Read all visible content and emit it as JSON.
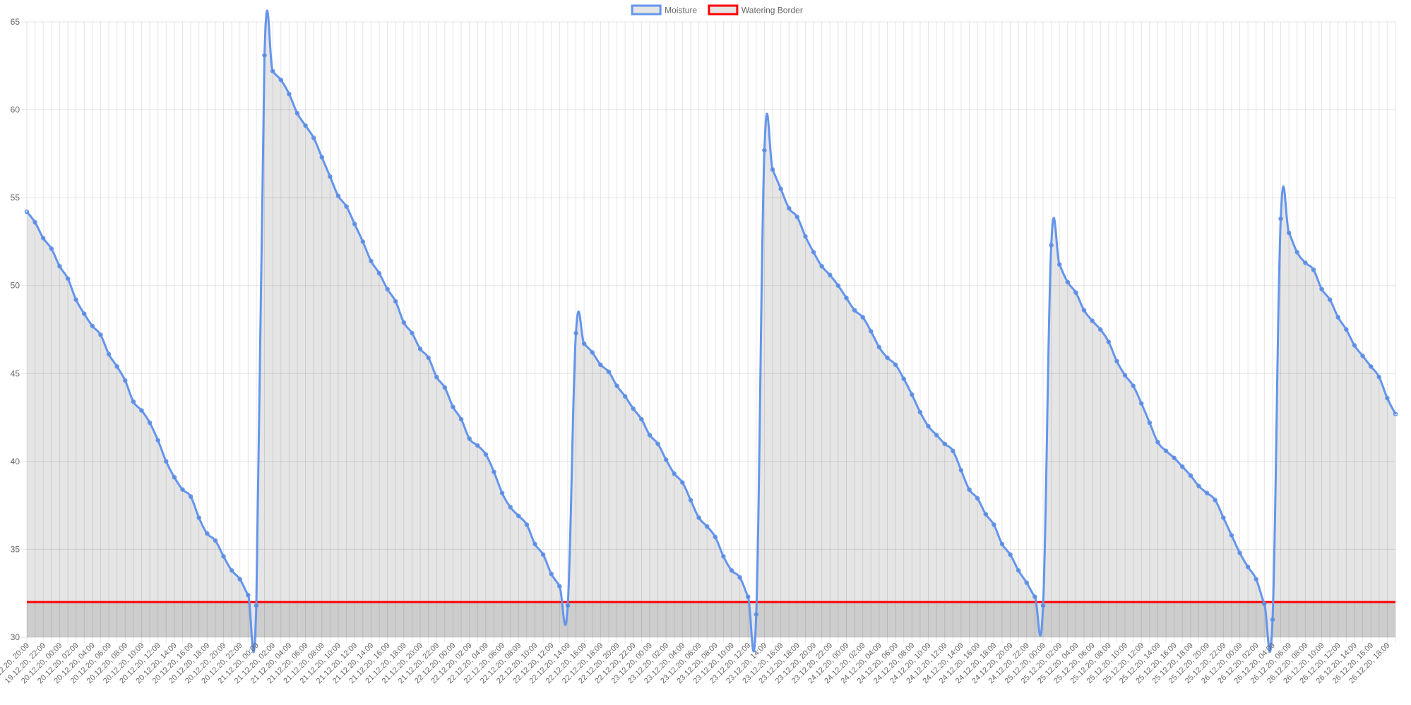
{
  "chart_data": {
    "type": "line",
    "title": "",
    "xlabel": "",
    "ylabel": "",
    "ylim": [
      30,
      65
    ],
    "yticks": [
      30,
      35,
      40,
      45,
      50,
      55,
      60,
      65
    ],
    "grid": true,
    "legend_position": "top-center",
    "x": [
      "19.12.20, 20:09",
      "19.12.20, 21:09",
      "19.12.20, 22:09",
      "19.12.20, 23:09",
      "20.12.20, 00:09",
      "20.12.20, 01:09",
      "20.12.20, 02:09",
      "20.12.20, 03:09",
      "20.12.20, 04:09",
      "20.12.20, 05:09",
      "20.12.20, 06:09",
      "20.12.20, 07:09",
      "20.12.20, 08:09",
      "20.12.20, 09:09",
      "20.12.20, 10:09",
      "20.12.20, 11:09",
      "20.12.20, 12:09",
      "20.12.20, 13:09",
      "20.12.20, 14:09",
      "20.12.20, 15:09",
      "20.12.20, 16:09",
      "20.12.20, 17:09",
      "20.12.20, 18:09",
      "20.12.20, 19:09",
      "20.12.20, 20:09",
      "20.12.20, 21:09",
      "20.12.20, 22:09",
      "20.12.20, 23:09",
      "21.12.20, 00:09",
      "21.12.20, 01:09",
      "21.12.20, 02:09",
      "21.12.20, 03:09",
      "21.12.20, 04:09",
      "21.12.20, 05:09",
      "21.12.20, 06:09",
      "21.12.20, 07:09",
      "21.12.20, 08:09",
      "21.12.20, 09:09",
      "21.12.20, 10:09",
      "21.12.20, 11:09",
      "21.12.20, 12:09",
      "21.12.20, 13:09",
      "21.12.20, 14:09",
      "21.12.20, 15:09",
      "21.12.20, 16:09",
      "21.12.20, 17:09",
      "21.12.20, 18:09",
      "21.12.20, 19:09",
      "21.12.20, 20:09",
      "21.12.20, 21:09",
      "21.12.20, 22:09",
      "21.12.20, 23:09",
      "22.12.20, 00:09",
      "22.12.20, 01:09",
      "22.12.20, 02:09",
      "22.12.20, 03:09",
      "22.12.20, 04:09",
      "22.12.20, 05:09",
      "22.12.20, 06:09",
      "22.12.20, 07:09",
      "22.12.20, 08:09",
      "22.12.20, 09:09",
      "22.12.20, 10:09",
      "22.12.20, 11:09",
      "22.12.20, 12:09",
      "22.12.20, 13:09",
      "22.12.20, 14:09",
      "22.12.20, 15:09",
      "22.12.20, 16:09",
      "22.12.20, 17:09",
      "22.12.20, 18:09",
      "22.12.20, 19:09",
      "22.12.20, 20:09",
      "22.12.20, 21:09",
      "22.12.20, 22:09",
      "22.12.20, 23:09",
      "23.12.20, 00:09",
      "23.12.20, 01:09",
      "23.12.20, 02:09",
      "23.12.20, 03:09",
      "23.12.20, 04:09",
      "23.12.20, 05:09",
      "23.12.20, 06:09",
      "23.12.20, 07:09",
      "23.12.20, 08:09",
      "23.12.20, 09:09",
      "23.12.20, 10:09",
      "23.12.20, 11:09",
      "23.12.20, 12:09",
      "23.12.20, 13:09",
      "23.12.20, 14:09",
      "23.12.20, 15:09",
      "23.12.20, 16:09",
      "23.12.20, 17:09",
      "23.12.20, 18:09",
      "23.12.20, 19:09",
      "23.12.20, 20:09",
      "23.12.20, 21:09",
      "23.12.20, 22:09",
      "23.12.20, 23:09",
      "24.12.20, 00:09",
      "24.12.20, 01:09",
      "24.12.20, 02:09",
      "24.12.20, 03:09",
      "24.12.20, 04:09",
      "24.12.20, 05:09",
      "24.12.20, 06:09",
      "24.12.20, 07:09",
      "24.12.20, 08:09",
      "24.12.20, 09:09",
      "24.12.20, 10:09",
      "24.12.20, 11:09",
      "24.12.20, 12:09",
      "24.12.20, 13:09",
      "24.12.20, 14:09",
      "24.12.20, 15:09",
      "24.12.20, 16:09",
      "24.12.20, 17:09",
      "24.12.20, 18:09",
      "24.12.20, 19:09",
      "24.12.20, 20:09",
      "24.12.20, 21:09",
      "24.12.20, 22:09",
      "24.12.20, 23:09",
      "25.12.20, 00:09",
      "25.12.20, 01:09",
      "25.12.20, 02:09",
      "25.12.20, 03:09",
      "25.12.20, 04:09",
      "25.12.20, 05:09",
      "25.12.20, 06:09",
      "25.12.20, 07:09",
      "25.12.20, 08:09",
      "25.12.20, 09:09",
      "25.12.20, 10:09",
      "25.12.20, 11:09",
      "25.12.20, 12:09",
      "25.12.20, 13:09",
      "25.12.20, 14:09",
      "25.12.20, 15:09",
      "25.12.20, 16:09",
      "25.12.20, 17:09",
      "25.12.20, 18:09",
      "25.12.20, 19:09",
      "25.12.20, 20:09",
      "25.12.20, 21:09",
      "25.12.20, 22:09",
      "25.12.20, 23:09",
      "26.12.20, 00:09",
      "26.12.20, 01:09",
      "26.12.20, 02:09",
      "26.12.20, 03:09",
      "26.12.20, 04:09",
      "26.12.20, 05:09",
      "26.12.20, 06:09",
      "26.12.20, 07:09",
      "26.12.20, 08:09",
      "26.12.20, 09:09",
      "26.12.20, 10:09",
      "26.12.20, 11:09",
      "26.12.20, 12:09",
      "26.12.20, 13:09",
      "26.12.20, 14:09",
      "26.12.20, 15:09",
      "26.12.20, 16:09",
      "26.12.20, 17:09",
      "26.12.20, 18:09",
      "26.12.20, 19:09"
    ],
    "xtick_every": 2,
    "series": [
      {
        "name": "Moisture",
        "color": "#6495ED",
        "fill": "rgba(0,0,0,0.1)",
        "values": [
          54.2,
          53.6,
          52.7,
          52.1,
          51.1,
          50.4,
          49.2,
          48.4,
          47.7,
          47.2,
          46.1,
          45.4,
          44.6,
          43.4,
          42.9,
          42.2,
          41.2,
          40.0,
          39.1,
          38.4,
          38.0,
          36.8,
          35.9,
          35.5,
          34.6,
          33.8,
          33.3,
          32.4,
          31.8,
          63.1,
          62.2,
          61.7,
          60.9,
          59.8,
          59.1,
          58.4,
          57.3,
          56.2,
          55.1,
          54.5,
          53.5,
          52.5,
          51.4,
          50.7,
          49.8,
          49.1,
          47.9,
          47.3,
          46.4,
          45.9,
          44.8,
          44.2,
          43.1,
          42.4,
          41.3,
          40.9,
          40.4,
          39.4,
          38.2,
          37.4,
          36.9,
          36.4,
          35.3,
          34.7,
          33.6,
          32.9,
          31.8,
          47.3,
          46.7,
          46.2,
          45.5,
          45.1,
          44.3,
          43.7,
          43.0,
          42.4,
          41.5,
          41.0,
          40.1,
          39.3,
          38.8,
          37.8,
          36.8,
          36.3,
          35.7,
          34.6,
          33.8,
          33.4,
          32.3,
          31.3,
          57.7,
          56.6,
          55.5,
          54.4,
          53.9,
          52.8,
          51.9,
          51.1,
          50.6,
          50.0,
          49.3,
          48.6,
          48.2,
          47.4,
          46.5,
          45.9,
          45.5,
          44.7,
          43.8,
          42.8,
          42.0,
          41.5,
          41.0,
          40.6,
          39.5,
          38.4,
          37.9,
          37.0,
          36.4,
          35.3,
          34.7,
          33.8,
          33.1,
          32.3,
          31.8,
          52.3,
          51.2,
          50.2,
          49.6,
          48.6,
          48.0,
          47.5,
          46.8,
          45.7,
          44.9,
          44.3,
          43.3,
          42.2,
          41.1,
          40.6,
          40.2,
          39.7,
          39.2,
          38.6,
          38.2,
          37.8,
          36.8,
          35.8,
          34.8,
          34.0,
          33.3,
          31.9,
          31.0,
          53.8,
          53.0,
          51.9,
          51.3,
          50.9,
          49.8,
          49.2,
          48.2,
          47.5,
          46.6,
          46.0,
          45.4,
          44.8,
          43.6,
          42.7
        ]
      },
      {
        "name": "Watering Border",
        "color": "#FF0000",
        "fill": "rgba(0,0,0,0.1)",
        "constant": 32
      }
    ]
  }
}
